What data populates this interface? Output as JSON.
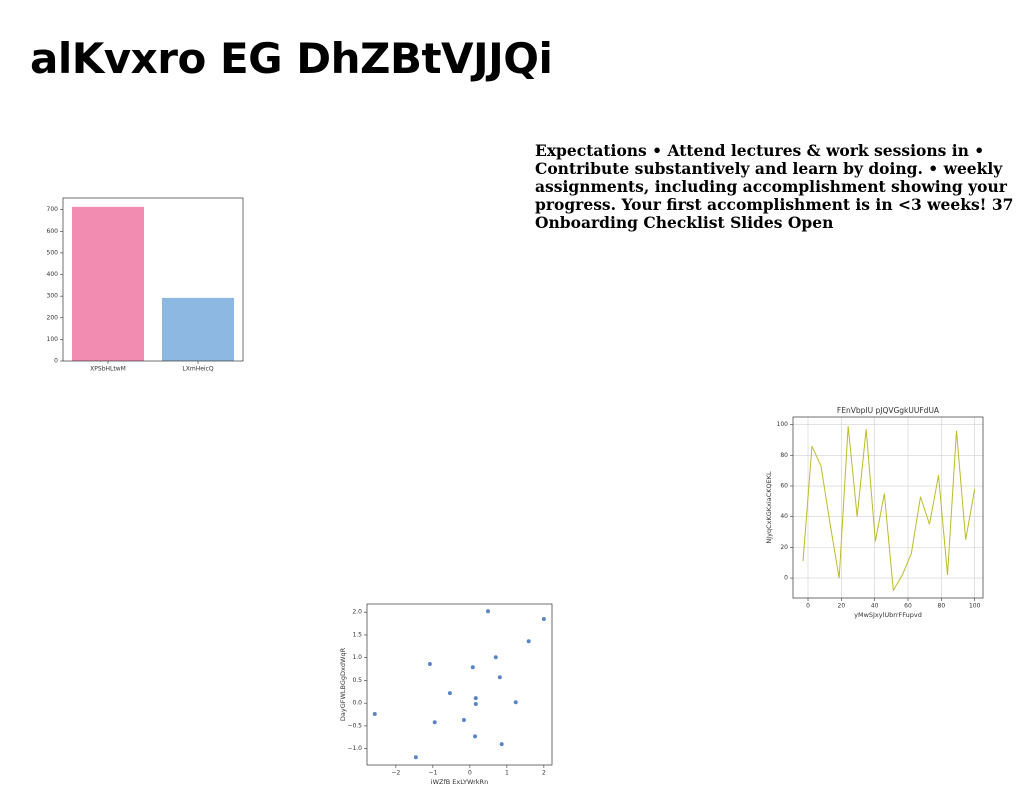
{
  "title": "alKvxro EG DhZBtVJJQi",
  "text": "Expectations • Attend lectures & work sessions in • Contribute substantively and learn by doing. • weekly assignments, including accomplishment showing your progress. Your first accomplishment is in <3 weeks! 37 Onboarding Checklist Slides Open",
  "chart_data": [
    {
      "type": "bar",
      "categories": [
        "XPSbHLtwM",
        "LXmHeicQ"
      ],
      "values": [
        713,
        292
      ],
      "colors": [
        "#f28cb1",
        "#8db8e2"
      ],
      "ylim": [
        0,
        754
      ],
      "yticks": [
        0,
        100,
        200,
        300,
        400,
        500,
        600,
        700
      ],
      "grid": false
    },
    {
      "type": "line",
      "title": "FEnVbpIU pJQVGgkUUFdUA",
      "x_label": "yMwSJxylUbrrFFupvd",
      "y_label": "NJyqCxKGKxiaCKQEKL",
      "x": [
        -3,
        2.4,
        7.8,
        13.3,
        18.7,
        24.1,
        29.5,
        34.9,
        40.4,
        45.8,
        51.2,
        56.6,
        62,
        67.5,
        72.9,
        78.3,
        83.7,
        89.1,
        94.6,
        100
      ],
      "values": [
        11,
        86,
        73,
        35,
        0,
        99,
        40,
        97,
        24,
        55,
        -8,
        2,
        16,
        53,
        35,
        67,
        2,
        96,
        25,
        58
      ],
      "color": "#bcbd22",
      "xlim": [
        -9,
        105
      ],
      "ylim": [
        -13,
        105
      ],
      "xticks": [
        0,
        20,
        40,
        60,
        80,
        100
      ],
      "yticks": [
        0,
        20,
        40,
        60,
        80,
        100
      ],
      "grid": true
    },
    {
      "type": "scatter",
      "x_label": "iWZfB ExLYWrkRn",
      "y_label": "DayGFWLBGgDxdWqR",
      "x": [
        -2.57,
        -1.46,
        -1.08,
        -0.95,
        -0.54,
        -0.16,
        0.08,
        0.16,
        0.16,
        0.14,
        0.49,
        0.7,
        0.81,
        0.86,
        1.24,
        1.59,
        2.0
      ],
      "values": [
        -0.24,
        -1.19,
        0.86,
        -0.42,
        0.22,
        -0.37,
        0.79,
        0.11,
        -0.02,
        -0.73,
        2.02,
        1.01,
        0.57,
        -0.9,
        0.02,
        1.36,
        1.85
      ],
      "color": "#5b84c4",
      "xlim": [
        -2.78,
        2.22
      ],
      "ylim": [
        -1.36,
        2.18
      ],
      "xticks": [
        {
          "value": -2,
          "label": "−2"
        },
        {
          "value": -1,
          "label": "−1"
        },
        0,
        1,
        2
      ],
      "yticks": [
        {
          "value": -1,
          "label": "−1.0"
        },
        {
          "value": -0.5,
          "label": "−0.5"
        },
        {
          "value": 0,
          "label": "0.0"
        },
        {
          "value": 0.5,
          "label": "0.5"
        },
        {
          "value": 1,
          "label": "1.0"
        },
        {
          "value": 1.5,
          "label": "1.5"
        },
        {
          "value": 2,
          "label": "2.0"
        }
      ],
      "grid": false
    }
  ]
}
